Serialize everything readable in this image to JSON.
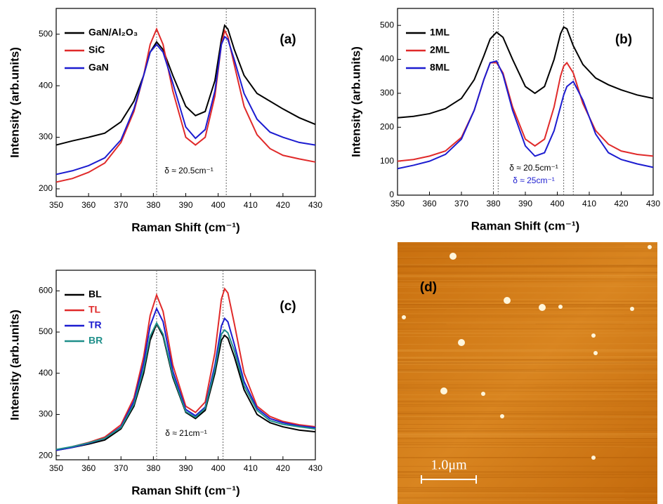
{
  "chart_data": [
    {
      "type": "line",
      "panel_label": "(a)",
      "x_label": "Raman Shift (cm⁻¹)",
      "y_label": "Intensity (arb.units)",
      "xlim": [
        350,
        430
      ],
      "xticks": [
        350,
        360,
        370,
        380,
        390,
        400,
        410,
        420,
        430
      ],
      "ylim": [
        185,
        550
      ],
      "yticks": [
        200,
        300,
        400,
        500
      ],
      "vlines": [
        381,
        402.5
      ],
      "annotations": [
        {
          "text": "δ ≈ 20.5cm⁻¹",
          "color": "#000000"
        }
      ],
      "x": [
        350,
        355,
        360,
        365,
        370,
        374,
        377,
        379,
        381,
        383,
        386,
        390,
        393,
        396,
        399,
        401,
        402,
        403,
        405,
        408,
        412,
        416,
        420,
        425,
        430
      ],
      "series": [
        {
          "name": "GaN/Al₂O₃",
          "color": "#000000",
          "values": [
            285,
            293,
            300,
            308,
            330,
            370,
            420,
            465,
            485,
            470,
            420,
            360,
            342,
            350,
            410,
            490,
            517,
            510,
            470,
            420,
            385,
            370,
            355,
            338,
            325
          ]
        },
        {
          "name": "SiC",
          "color": "#e02a2a",
          "values": [
            213,
            220,
            232,
            250,
            290,
            350,
            420,
            480,
            510,
            480,
            390,
            300,
            285,
            300,
            380,
            480,
            507,
            495,
            440,
            360,
            305,
            278,
            265,
            258,
            252
          ]
        },
        {
          "name": "GaN",
          "color": "#1c1cd0",
          "values": [
            228,
            235,
            245,
            260,
            295,
            355,
            420,
            465,
            480,
            465,
            405,
            320,
            298,
            315,
            390,
            480,
            495,
            490,
            450,
            385,
            335,
            310,
            300,
            290,
            285
          ]
        }
      ]
    },
    {
      "type": "line",
      "panel_label": "(b)",
      "x_label": "Raman Shift (cm⁻¹)",
      "y_label": "Intensity (arb.units)",
      "xlim": [
        350,
        430
      ],
      "xticks": [
        350,
        360,
        370,
        380,
        390,
        400,
        410,
        420,
        430
      ],
      "ylim": [
        0,
        550
      ],
      "yticks": [
        0,
        100,
        200,
        300,
        400,
        500
      ],
      "vlines": [
        380,
        381.5,
        402,
        405
      ],
      "annotations": [
        {
          "text": "δ ≈ 20.5cm⁻¹",
          "color": "#000000"
        },
        {
          "text": "δ ≈ 25cm⁻¹",
          "color": "#1c1cd0"
        }
      ],
      "x": [
        350,
        355,
        360,
        365,
        370,
        374,
        377,
        379,
        381,
        383,
        386,
        390,
        393,
        396,
        399,
        401,
        402,
        403,
        405,
        408,
        412,
        416,
        420,
        425,
        430
      ],
      "series": [
        {
          "name": "1ML",
          "color": "#000000",
          "values": [
            228,
            232,
            240,
            255,
            285,
            340,
            410,
            460,
            480,
            465,
            400,
            320,
            300,
            320,
            400,
            475,
            495,
            490,
            440,
            385,
            345,
            325,
            310,
            295,
            285
          ]
        },
        {
          "name": "2ML",
          "color": "#e02a2a",
          "values": [
            100,
            105,
            115,
            130,
            170,
            250,
            340,
            390,
            390,
            360,
            260,
            165,
            145,
            165,
            260,
            350,
            380,
            390,
            360,
            270,
            190,
            150,
            130,
            120,
            115
          ]
        },
        {
          "name": "8ML",
          "color": "#1c1cd0",
          "values": [
            78,
            88,
            100,
            120,
            165,
            250,
            340,
            390,
            395,
            355,
            250,
            145,
            115,
            125,
            190,
            260,
            295,
            320,
            335,
            280,
            180,
            125,
            105,
            92,
            82
          ]
        }
      ]
    },
    {
      "type": "line",
      "panel_label": "(c)",
      "x_label": "Raman Shift (cm⁻¹)",
      "y_label": "Intensity (arb.units)",
      "xlim": [
        350,
        430
      ],
      "xticks": [
        350,
        360,
        370,
        380,
        390,
        400,
        410,
        420,
        430
      ],
      "ylim": [
        190,
        650
      ],
      "yticks": [
        200,
        300,
        400,
        500,
        600
      ],
      "vlines": [
        381,
        401.5
      ],
      "legend_label_colored": true,
      "annotations": [
        {
          "text": "δ ≈ 21cm⁻¹",
          "color": "#000000"
        }
      ],
      "x": [
        350,
        355,
        360,
        365,
        370,
        374,
        377,
        379,
        381,
        383,
        386,
        390,
        393,
        396,
        399,
        401,
        402,
        403,
        405,
        408,
        412,
        416,
        420,
        425,
        430
      ],
      "series": [
        {
          "name": "BL",
          "color": "#000000",
          "values": [
            213,
            220,
            228,
            238,
            265,
            320,
            400,
            480,
            520,
            490,
            390,
            305,
            290,
            310,
            400,
            480,
            492,
            485,
            440,
            360,
            300,
            280,
            270,
            262,
            258
          ]
        },
        {
          "name": "TL",
          "color": "#e02a2a",
          "values": [
            213,
            222,
            232,
            245,
            275,
            340,
            440,
            540,
            590,
            550,
            420,
            320,
            305,
            330,
            450,
            580,
            605,
            595,
            520,
            400,
            320,
            295,
            283,
            275,
            270
          ]
        },
        {
          "name": "TR",
          "color": "#1c1cd0",
          "values": [
            213,
            220,
            230,
            242,
            270,
            332,
            425,
            515,
            557,
            525,
            405,
            312,
            297,
            318,
            420,
            515,
            533,
            525,
            470,
            380,
            315,
            290,
            280,
            272,
            268
          ]
        },
        {
          "name": "BR",
          "color": "#1f8f8a",
          "values": [
            215,
            222,
            231,
            242,
            268,
            325,
            410,
            490,
            522,
            495,
            395,
            307,
            293,
            315,
            410,
            495,
            505,
            498,
            455,
            370,
            310,
            285,
            276,
            270,
            265
          ]
        }
      ]
    }
  ],
  "image": {
    "panel_label": "(d)",
    "scale_bar": "1.0μm"
  }
}
